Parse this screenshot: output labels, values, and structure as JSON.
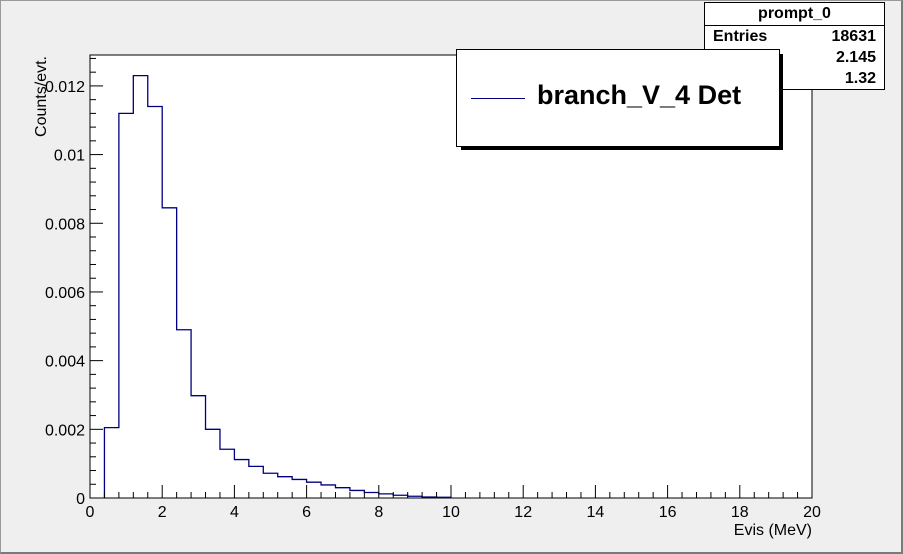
{
  "chart_data": {
    "type": "histogram",
    "title": "",
    "xlabel": "Evis (MeV)",
    "ylabel": "Counts/evt.",
    "xlim": [
      0,
      20
    ],
    "ylim": [
      0,
      0.0129
    ],
    "grid": false,
    "x_ticks": [
      "0",
      "2",
      "4",
      "6",
      "8",
      "10",
      "12",
      "14",
      "16",
      "18",
      "20"
    ],
    "y_ticks": [
      "0",
      "0.002",
      "0.004",
      "0.006",
      "0.008",
      "0.01",
      "0.012"
    ],
    "bin_width": 0.4,
    "bins_start": 0.4,
    "series": [
      {
        "name": "branch_V_4 Det",
        "color": "#000080",
        "values": [
          0.00205,
          0.0112,
          0.0123,
          0.0114,
          0.00845,
          0.0049,
          0.00298,
          0.002,
          0.00142,
          0.00112,
          0.00092,
          0.00072,
          0.00062,
          0.00054,
          0.00046,
          0.00038,
          0.0003,
          0.00022,
          0.00016,
          0.00012,
          8e-05,
          5e-05,
          3e-05,
          2e-05
        ]
      }
    ]
  },
  "legend": {
    "label": "branch_V_4 Det",
    "position": "top-right"
  },
  "stats_box": {
    "title": "prompt_0",
    "rows": [
      {
        "key": "Entries",
        "value": "18631"
      },
      {
        "key": "",
        "value": "2.145"
      },
      {
        "key": "",
        "value": "1.32"
      }
    ]
  }
}
